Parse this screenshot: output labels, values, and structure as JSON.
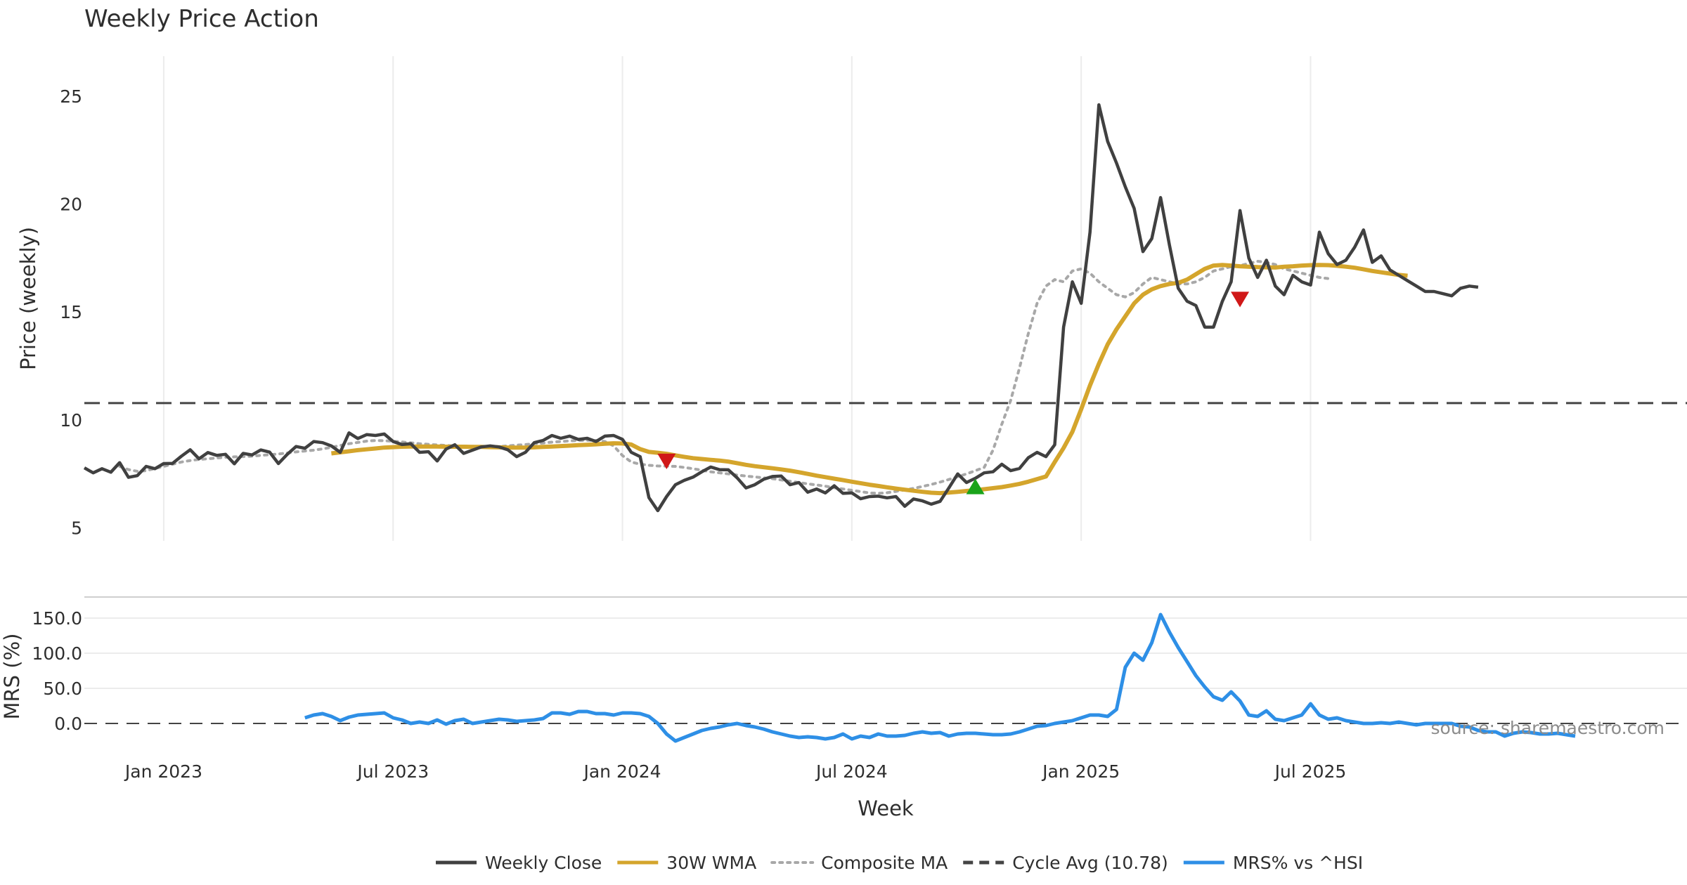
{
  "chart_data": {
    "type": "line",
    "title": "Weekly Price Action",
    "ylabel": "Price (weekly)",
    "xlabel": "Week",
    "ylim": [
      4.4,
      26.2
    ],
    "yticks": [
      5,
      10,
      15,
      20,
      25
    ],
    "grid": "vertical",
    "legend_position": "bottom-center",
    "date_ticks": [
      {
        "label": "Jan 2023",
        "week": 9
      },
      {
        "label": "Jul 2023",
        "week": 35
      },
      {
        "label": "Jan 2024",
        "week": 61
      },
      {
        "label": "Jul 2024",
        "week": 87
      },
      {
        "label": "Jan 2025",
        "week": 113
      },
      {
        "label": "Jul 2025",
        "week": 139
      }
    ],
    "weekly_close": [
      7.78,
      7.55,
      7.74,
      7.58,
      8.02,
      7.34,
      7.42,
      7.85,
      7.74,
      7.98,
      7.99,
      8.32,
      8.62,
      8.2,
      8.49,
      8.36,
      8.41,
      7.97,
      8.45,
      8.38,
      8.61,
      8.51,
      7.98,
      8.41,
      8.77,
      8.69,
      9.0,
      8.95,
      8.8,
      8.5,
      9.4,
      9.14,
      9.32,
      9.28,
      9.35,
      9.0,
      8.86,
      8.9,
      8.5,
      8.53,
      8.1,
      8.65,
      8.85,
      8.45,
      8.6,
      8.75,
      8.8,
      8.75,
      8.62,
      8.3,
      8.5,
      8.95,
      9.05,
      9.28,
      9.15,
      9.25,
      9.1,
      9.15,
      9.0,
      9.25,
      9.28,
      9.1,
      8.5,
      8.3,
      6.4,
      5.8,
      6.45,
      7.0,
      7.2,
      7.35,
      7.6,
      7.82,
      7.7,
      7.69,
      7.32,
      6.85,
      7.0,
      7.25,
      7.38,
      7.4,
      7.0,
      7.1,
      6.65,
      6.8,
      6.62,
      6.95,
      6.6,
      6.62,
      6.35,
      6.45,
      6.47,
      6.39,
      6.45,
      6.0,
      6.34,
      6.25,
      6.1,
      6.23,
      6.85,
      7.5,
      7.1,
      7.3,
      7.55,
      7.6,
      7.95,
      7.65,
      7.75,
      8.25,
      8.5,
      8.3,
      8.85,
      14.3,
      16.4,
      15.4,
      18.7,
      24.6,
      22.9,
      21.9,
      20.8,
      19.8,
      17.8,
      18.4,
      20.3,
      18.1,
      16.1,
      15.5,
      15.3,
      14.3,
      14.3,
      15.5,
      16.4,
      19.7,
      17.5,
      16.6,
      17.4,
      16.2,
      15.8,
      16.7,
      16.4,
      16.25,
      18.7,
      17.7,
      17.2,
      17.4,
      18.0,
      18.8,
      17.3,
      17.6,
      16.95,
      16.7,
      16.45,
      16.2,
      15.95,
      15.95,
      15.85,
      15.75,
      16.1,
      16.2,
      16.15
    ],
    "wma30_start_week": 28,
    "wma30": [
      8.45,
      8.5,
      8.55,
      8.6,
      8.64,
      8.68,
      8.72,
      8.74,
      8.76,
      8.77,
      8.77,
      8.77,
      8.77,
      8.76,
      8.76,
      8.76,
      8.75,
      8.75,
      8.74,
      8.73,
      8.72,
      8.72,
      8.72,
      8.73,
      8.75,
      8.77,
      8.79,
      8.81,
      8.83,
      8.85,
      8.87,
      8.9,
      8.92,
      8.91,
      8.86,
      8.65,
      8.52,
      8.48,
      8.43,
      8.36,
      8.29,
      8.23,
      8.19,
      8.15,
      8.12,
      8.07,
      8.0,
      7.92,
      7.86,
      7.81,
      7.76,
      7.71,
      7.65,
      7.58,
      7.5,
      7.42,
      7.35,
      7.28,
      7.21,
      7.14,
      7.07,
      7.0,
      6.94,
      6.88,
      6.82,
      6.77,
      6.72,
      6.67,
      6.63,
      6.61,
      6.64,
      6.67,
      6.71,
      6.75,
      6.79,
      6.84,
      6.89,
      6.96,
      7.04,
      7.14,
      7.26,
      7.38,
      8.05,
      8.7,
      9.45,
      10.5,
      11.6,
      12.6,
      13.5,
      14.2,
      14.8,
      15.4,
      15.8,
      16.05,
      16.2,
      16.3,
      16.35,
      16.5,
      16.75,
      17.0,
      17.15,
      17.18,
      17.15,
      17.12,
      17.1,
      17.08,
      17.07,
      17.06,
      17.1,
      17.12,
      17.15,
      17.17,
      17.18,
      17.17,
      17.14,
      17.1,
      17.05,
      16.98,
      16.9,
      16.84,
      16.78,
      16.72,
      16.68
    ],
    "composite_ma_start_week": 4,
    "composite_ma": [
      7.85,
      7.7,
      7.62,
      7.65,
      7.75,
      7.85,
      7.95,
      8.05,
      8.12,
      8.17,
      8.2,
      8.24,
      8.27,
      8.29,
      8.3,
      8.32,
      8.36,
      8.39,
      8.42,
      8.47,
      8.52,
      8.56,
      8.6,
      8.66,
      8.73,
      8.82,
      8.9,
      8.96,
      9.02,
      9.05,
      9.04,
      9.01,
      8.98,
      8.94,
      8.9,
      8.87,
      8.84,
      8.82,
      8.8,
      8.79,
      8.78,
      8.77,
      8.76,
      8.77,
      8.8,
      8.83,
      8.86,
      8.9,
      8.93,
      8.97,
      9.0,
      9.03,
      9.05,
      9.06,
      9.05,
      9.0,
      8.8,
      8.35,
      8.05,
      7.95,
      7.9,
      7.87,
      7.86,
      7.85,
      7.8,
      7.74,
      7.67,
      7.6,
      7.55,
      7.5,
      7.45,
      7.4,
      7.36,
      7.32,
      7.28,
      7.22,
      7.16,
      7.1,
      7.04,
      6.99,
      6.93,
      6.86,
      6.8,
      6.74,
      6.68,
      6.62,
      6.6,
      6.63,
      6.69,
      6.76,
      6.83,
      6.92,
      7.01,
      7.12,
      7.24,
      7.37,
      7.5,
      7.65,
      7.8,
      8.6,
      9.8,
      10.9,
      12.4,
      14.0,
      15.4,
      16.2,
      16.5,
      16.4,
      16.9,
      17.0,
      16.8,
      16.4,
      16.1,
      15.8,
      15.7,
      15.9,
      16.3,
      16.6,
      16.5,
      16.4,
      16.3,
      16.3,
      16.4,
      16.6,
      16.9,
      17.0,
      17.1,
      17.15,
      17.25,
      17.35,
      17.3,
      17.2,
      17.0,
      16.9,
      16.8,
      16.7,
      16.6,
      16.55
    ],
    "cycle_avg": {
      "label": "Cycle Avg (10.78)",
      "value": 10.78
    },
    "signals": [
      {
        "type": "sell",
        "week": 66,
        "value": 8.1
      },
      {
        "type": "buy",
        "week": 101,
        "value": 6.9
      },
      {
        "type": "sell",
        "week": 131,
        "value": 15.6
      }
    ],
    "mrs_panel": {
      "ylabel": "MRS (%)",
      "yticks": [
        "0.0",
        "50.0",
        "100.0",
        "150.0"
      ],
      "ytick_values": [
        0,
        50,
        100,
        150
      ],
      "ylim": [
        -40,
        170
      ],
      "zero_line": 0,
      "start_week": 25,
      "values": [
        8,
        12,
        14,
        10,
        4,
        9,
        12,
        13,
        14,
        15,
        8,
        5,
        0,
        2,
        0,
        5,
        -1,
        4,
        6,
        0,
        2,
        4,
        6,
        5,
        3,
        4,
        5,
        7,
        15,
        15,
        13,
        17,
        17,
        14,
        14,
        12,
        15,
        15,
        14,
        10,
        0,
        -15,
        -25,
        -20,
        -15,
        -10,
        -7,
        -5,
        -2,
        0,
        -3,
        -5,
        -8,
        -12,
        -15,
        -18,
        -20,
        -19,
        -20,
        -22,
        -20,
        -15,
        -22,
        -18,
        -20,
        -15,
        -18,
        -18,
        -17,
        -14,
        -12,
        -14,
        -13,
        -18,
        -15,
        -14,
        -14,
        -15,
        -16,
        -16,
        -15,
        -12,
        -8,
        -4,
        -3,
        0,
        2,
        4,
        8,
        12,
        12,
        10,
        20,
        80,
        100,
        90,
        115,
        155,
        130,
        108,
        88,
        68,
        52,
        38,
        33,
        45,
        32,
        12,
        10,
        18,
        6,
        4,
        8,
        12,
        28,
        12,
        6,
        8,
        4,
        2,
        0,
        0,
        1,
        0,
        2,
        0,
        -2,
        0,
        0,
        0,
        0,
        -4,
        -5,
        -10,
        -12,
        -12,
        -18,
        -14,
        -12,
        -13,
        -15,
        -15,
        -14,
        -16,
        -18
      ]
    },
    "legend": [
      {
        "label": "Weekly Close",
        "color": "#404040",
        "style": "solid"
      },
      {
        "label": "30W WMA",
        "color": "#d4a52c",
        "style": "solid"
      },
      {
        "label": "Composite MA",
        "color": "#a8a8a8",
        "style": "dotted"
      },
      {
        "label": "Cycle Avg (10.78)",
        "color": "#444444",
        "style": "dashed"
      },
      {
        "label": "MRS% vs ^HSI",
        "color": "#2e8fe6",
        "style": "solid"
      }
    ],
    "colors": {
      "close": "#404040",
      "wma": "#d4a52c",
      "composite": "#a8a8a8",
      "cycle": "#444444",
      "mrs": "#2e8fe6",
      "buy": "#1aa31a",
      "sell": "#d01818"
    },
    "watermark": "source: sharemaestro.com"
  }
}
